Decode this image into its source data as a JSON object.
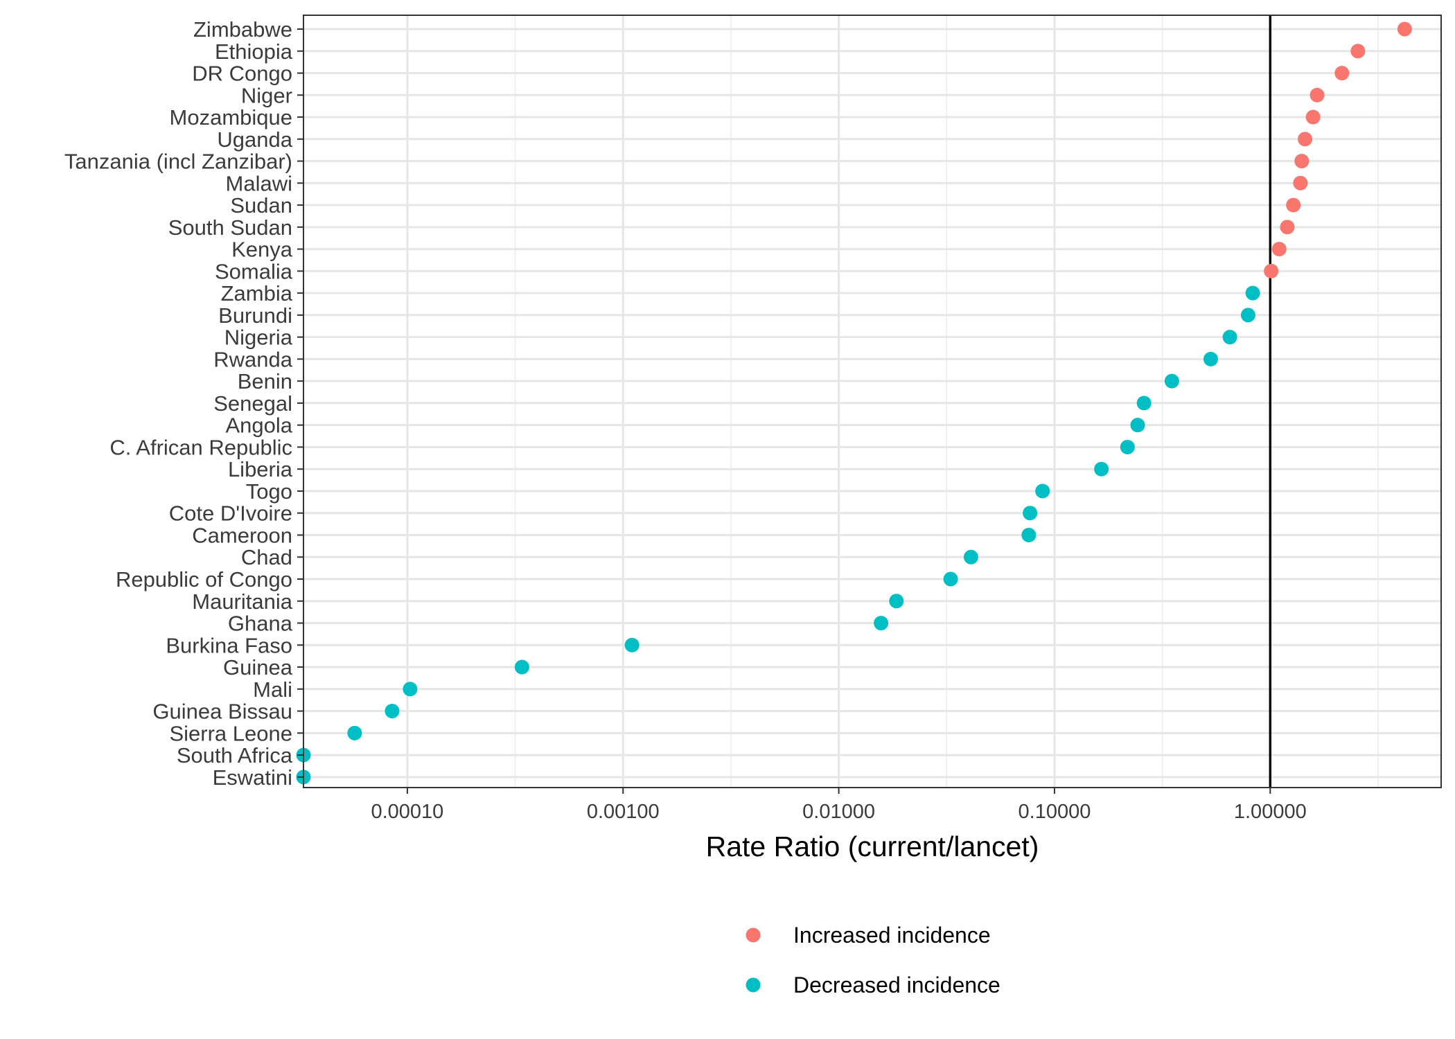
{
  "chart_data": {
    "type": "scatter",
    "title": "",
    "xlabel": "Rate Ratio (current/lancet)",
    "ylabel": "",
    "x_scale": "log10",
    "xlim": [
      3.3e-05,
      6.2
    ],
    "x_ticks": [
      0.0001,
      0.001,
      0.01,
      0.1,
      1
    ],
    "x_tick_labels": [
      "0.00010",
      "0.00100",
      "0.01000",
      "0.10000",
      "1.00000"
    ],
    "reference_line_x": 1,
    "grid": true,
    "legend_position": "bottom",
    "series": [
      {
        "name": "Increased incidence",
        "color": "#F8766D",
        "points": [
          {
            "country": "Zimbabwe",
            "value": 4.2
          },
          {
            "country": "Ethiopia",
            "value": 2.55
          },
          {
            "country": "DR Congo",
            "value": 2.15
          },
          {
            "country": "Niger",
            "value": 1.65
          },
          {
            "country": "Mozambique",
            "value": 1.58
          },
          {
            "country": "Uganda",
            "value": 1.45
          },
          {
            "country": "Tanzania (incl Zanzibar)",
            "value": 1.4
          },
          {
            "country": "Malawi",
            "value": 1.38
          },
          {
            "country": "Sudan",
            "value": 1.28
          },
          {
            "country": "South Sudan",
            "value": 1.2
          },
          {
            "country": "Kenya",
            "value": 1.1
          },
          {
            "country": "Somalia",
            "value": 1.01
          }
        ]
      },
      {
        "name": "Decreased incidence",
        "color": "#00BFC4",
        "points": [
          {
            "country": "Zambia",
            "value": 0.83
          },
          {
            "country": "Burundi",
            "value": 0.79
          },
          {
            "country": "Nigeria",
            "value": 0.65
          },
          {
            "country": "Rwanda",
            "value": 0.53
          },
          {
            "country": "Benin",
            "value": 0.35
          },
          {
            "country": "Senegal",
            "value": 0.26
          },
          {
            "country": "Angola",
            "value": 0.243
          },
          {
            "country": "C. African Republic",
            "value": 0.218
          },
          {
            "country": "Liberia",
            "value": 0.165
          },
          {
            "country": "Togo",
            "value": 0.088
          },
          {
            "country": "Cote D'Ivoire",
            "value": 0.077
          },
          {
            "country": "Cameroon",
            "value": 0.076
          },
          {
            "country": "Chad",
            "value": 0.041
          },
          {
            "country": "Republic of Congo",
            "value": 0.033
          },
          {
            "country": "Mauritania",
            "value": 0.0185
          },
          {
            "country": "Ghana",
            "value": 0.0157
          },
          {
            "country": "Burkina Faso",
            "value": 0.0011
          },
          {
            "country": "Guinea",
            "value": 0.00034
          },
          {
            "country": "Mali",
            "value": 0.000103
          },
          {
            "country": "Guinea Bissau",
            "value": 8.5e-05
          },
          {
            "country": "Sierra Leone",
            "value": 5.7e-05
          },
          {
            "country": "South Africa",
            "value": 3.3e-05
          },
          {
            "country": "Eswatini",
            "value": 3.3e-05
          }
        ]
      }
    ],
    "categories_top_to_bottom": [
      "Zimbabwe",
      "Ethiopia",
      "DR Congo",
      "Niger",
      "Mozambique",
      "Uganda",
      "Tanzania (incl Zanzibar)",
      "Malawi",
      "Sudan",
      "South Sudan",
      "Kenya",
      "Somalia",
      "Zambia",
      "Burundi",
      "Nigeria",
      "Rwanda",
      "Benin",
      "Senegal",
      "Angola",
      "C. African Republic",
      "Liberia",
      "Togo",
      "Cote D'Ivoire",
      "Cameroon",
      "Chad",
      "Republic of Congo",
      "Mauritania",
      "Ghana",
      "Burkina Faso",
      "Guinea",
      "Mali",
      "Guinea Bissau",
      "Sierra Leone",
      "South Africa",
      "Eswatini"
    ]
  }
}
